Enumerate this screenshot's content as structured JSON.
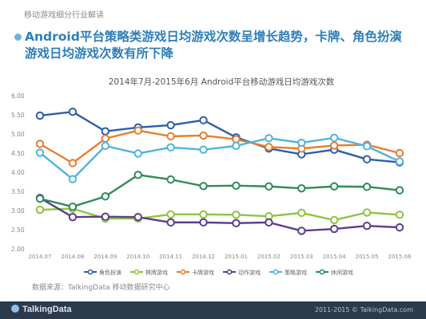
{
  "page": {
    "category_label": "移动游戏细分行业解读",
    "headline_line1": "Android平台策略类游戏日均游戏次数呈增长趋势，卡牌、角色扮演",
    "headline_line2": "游戏日均游戏次数有所下降",
    "source": "数据来源：TalkingData 移动数据研究中心",
    "brand": "TalkingData",
    "copyright": "2011-2015 © TalkingData.com"
  },
  "chart_data": {
    "type": "line",
    "title": "2014年7月-2015年6月 Android平台移动游戏日均游戏次数",
    "categories": [
      "2014.07",
      "2014.08",
      "2014.09",
      "2014.10",
      "2014.11",
      "2014.12",
      "2015.01",
      "2015.02",
      "2015.03",
      "2015.04",
      "2015.05",
      "2015.06"
    ],
    "ylim": [
      2.0,
      6.0
    ],
    "yticks": [
      "2.00",
      "2.50",
      "3.00",
      "3.50",
      "4.00",
      "4.50",
      "5.00",
      "5.50",
      "6.00"
    ],
    "grid": false,
    "legend_position": "bottom",
    "series": [
      {
        "name": "角色扮演",
        "color": "#2e5ea8",
        "values": [
          5.48,
          5.58,
          5.07,
          5.17,
          5.23,
          5.36,
          4.91,
          4.62,
          4.47,
          4.59,
          4.34,
          4.26
        ]
      },
      {
        "name": "棋牌游戏",
        "color": "#8cc63f",
        "values": [
          3.02,
          3.05,
          2.79,
          2.79,
          2.9,
          2.9,
          2.89,
          2.85,
          2.94,
          2.75,
          2.95,
          2.89
        ]
      },
      {
        "name": "卡牌游戏",
        "color": "#e67e30",
        "values": [
          4.74,
          4.24,
          4.88,
          5.09,
          4.94,
          4.96,
          4.86,
          4.66,
          4.62,
          4.7,
          4.72,
          4.5
        ]
      },
      {
        "name": "动作游戏",
        "color": "#5b3d8f",
        "values": [
          3.33,
          2.83,
          2.84,
          2.83,
          2.69,
          2.69,
          2.67,
          2.69,
          2.47,
          2.52,
          2.6,
          2.56
        ]
      },
      {
        "name": "策略游戏",
        "color": "#4fb3e0",
        "values": [
          4.51,
          3.82,
          4.69,
          4.49,
          4.65,
          4.59,
          4.69,
          4.89,
          4.77,
          4.9,
          4.68,
          4.28
        ]
      },
      {
        "name": "休闲游戏",
        "color": "#2e8b57",
        "values": [
          3.31,
          3.1,
          3.37,
          3.93,
          3.81,
          3.64,
          3.65,
          3.63,
          3.58,
          3.63,
          3.62,
          3.53
        ]
      }
    ]
  }
}
